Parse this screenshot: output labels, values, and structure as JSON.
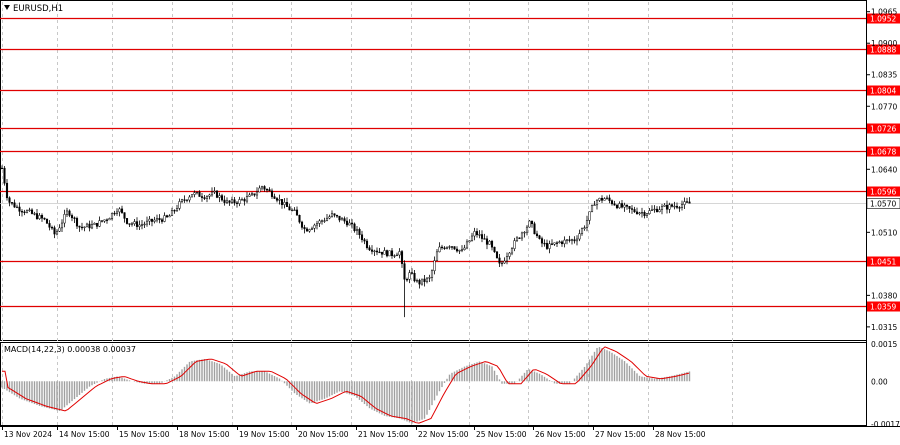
{
  "window": {
    "title": "EURUSD,H1",
    "menu_icon": "triangle-down-icon"
  },
  "indicator": {
    "label": "MACD(14,22,3) 0.00038 0.00037",
    "ticks": [
      "0.0015",
      "0.00",
      "-0.00172"
    ]
  },
  "price_axis": {
    "ticks": [
      "1.0965",
      "1.0900",
      "1.0835",
      "1.0770",
      "1.0640",
      "1.0510",
      "1.0380",
      "1.0315"
    ]
  },
  "levels": [
    {
      "value": 1.0952,
      "label": "1.0952"
    },
    {
      "value": 1.0888,
      "label": "1.0888"
    },
    {
      "value": 1.0804,
      "label": "1.0804"
    },
    {
      "value": 1.0726,
      "label": "1.0726"
    },
    {
      "value": 1.0678,
      "label": "1.0678"
    },
    {
      "value": 1.0596,
      "label": "1.0596"
    },
    {
      "value": 1.0451,
      "label": "1.0451"
    },
    {
      "value": 1.0359,
      "label": "1.0359"
    }
  ],
  "current_price": {
    "value": 1.057,
    "label": "1.0570"
  },
  "time_axis": {
    "labels": [
      "13 Nov 2024",
      "14 Nov 15:00",
      "15 Nov 15:00",
      "18 Nov 15:00",
      "19 Nov 15:00",
      "20 Nov 15:00",
      "21 Nov 15:00",
      "22 Nov 15:00",
      "25 Nov 15:00",
      "26 Nov 15:00",
      "27 Nov 15:00",
      "28 Nov 15:00"
    ]
  },
  "colors": {
    "level_line": "#e00000",
    "level_label_bg": "#ff0000",
    "level_label_text": "#ffffff",
    "current_label_bg": "#ffffff",
    "candle": "#000000",
    "macd_hist": "#a0a0a0",
    "macd_signal": "#e00000",
    "grid": "#c8c8c8"
  },
  "chart_data": {
    "type": "candlestick",
    "title": "EURUSD,H1",
    "ylim": [
      1.029,
      1.0985
    ],
    "path": [
      [
        0,
        1.0665
      ],
      [
        8,
        1.0575
      ],
      [
        18,
        1.056
      ],
      [
        30,
        1.055
      ],
      [
        45,
        1.0535
      ],
      [
        55,
        1.0505
      ],
      [
        68,
        1.0555
      ],
      [
        80,
        1.052
      ],
      [
        95,
        1.0525
      ],
      [
        108,
        1.054
      ],
      [
        118,
        1.056
      ],
      [
        128,
        1.053
      ],
      [
        140,
        1.0525
      ],
      [
        155,
        1.0535
      ],
      [
        168,
        1.054
      ],
      [
        180,
        1.057
      ],
      [
        192,
        1.059
      ],
      [
        205,
        1.0585
      ],
      [
        215,
        1.059
      ],
      [
        228,
        1.057
      ],
      [
        240,
        1.0575
      ],
      [
        252,
        1.0585
      ],
      [
        262,
        1.0605
      ],
      [
        275,
        1.0585
      ],
      [
        285,
        1.0565
      ],
      [
        295,
        1.055
      ],
      [
        305,
        1.0515
      ],
      [
        318,
        1.053
      ],
      [
        332,
        1.0545
      ],
      [
        348,
        1.053
      ],
      [
        360,
        1.0505
      ],
      [
        368,
        1.048
      ],
      [
        380,
        1.047
      ],
      [
        392,
        1.0465
      ],
      [
        400,
        1.047
      ],
      [
        404,
        1.041
      ],
      [
        410,
        1.0425
      ],
      [
        418,
        1.0405
      ],
      [
        430,
        1.0415
      ],
      [
        438,
        1.0475
      ],
      [
        450,
        1.0485
      ],
      [
        462,
        1.047
      ],
      [
        475,
        1.051
      ],
      [
        490,
        1.0485
      ],
      [
        500,
        1.044
      ],
      [
        510,
        1.0475
      ],
      [
        522,
        1.051
      ],
      [
        530,
        1.053
      ],
      [
        540,
        1.049
      ],
      [
        548,
        1.048
      ],
      [
        560,
        1.049
      ],
      [
        575,
        1.0495
      ],
      [
        585,
        1.0525
      ],
      [
        595,
        1.0575
      ],
      [
        605,
        1.058
      ],
      [
        618,
        1.0565
      ],
      [
        632,
        1.0555
      ],
      [
        645,
        1.055
      ],
      [
        660,
        1.056
      ],
      [
        675,
        1.0565
      ],
      [
        690,
        1.057
      ]
    ],
    "macd": {
      "ylim": [
        -0.00172,
        0.0015
      ],
      "path": [
        [
          0,
          -0.0002
        ],
        [
          20,
          -0.0007
        ],
        [
          40,
          -0.001
        ],
        [
          60,
          -0.0012
        ],
        [
          75,
          -0.0007
        ],
        [
          90,
          -0.0002
        ],
        [
          105,
          0.0001
        ],
        [
          118,
          0.0002
        ],
        [
          132,
          0.0
        ],
        [
          145,
          -0.0001
        ],
        [
          160,
          -0.0001
        ],
        [
          175,
          0.0002
        ],
        [
          190,
          0.0008
        ],
        [
          205,
          0.0009
        ],
        [
          220,
          0.0007
        ],
        [
          235,
          0.0002
        ],
        [
          250,
          0.0004
        ],
        [
          265,
          0.0004
        ],
        [
          280,
          0.0001
        ],
        [
          295,
          -0.0005
        ],
        [
          310,
          -0.0009
        ],
        [
          325,
          -0.0007
        ],
        [
          340,
          -0.0004
        ],
        [
          355,
          -0.0006
        ],
        [
          370,
          -0.0011
        ],
        [
          385,
          -0.0014
        ],
        [
          400,
          -0.0015
        ],
        [
          412,
          -0.0017
        ],
        [
          425,
          -0.0015
        ],
        [
          438,
          -0.0005
        ],
        [
          450,
          0.0003
        ],
        [
          465,
          0.0006
        ],
        [
          480,
          0.0008
        ],
        [
          492,
          0.0006
        ],
        [
          502,
          -0.0001
        ],
        [
          515,
          -0.0001
        ],
        [
          528,
          0.0005
        ],
        [
          540,
          0.0003
        ],
        [
          555,
          -0.0001
        ],
        [
          570,
          -0.0001
        ],
        [
          585,
          0.0006
        ],
        [
          598,
          0.0014
        ],
        [
          610,
          0.0012
        ],
        [
          625,
          0.0008
        ],
        [
          640,
          0.0002
        ],
        [
          655,
          0.0001
        ],
        [
          670,
          0.0002
        ],
        [
          690,
          0.0004
        ]
      ]
    }
  }
}
